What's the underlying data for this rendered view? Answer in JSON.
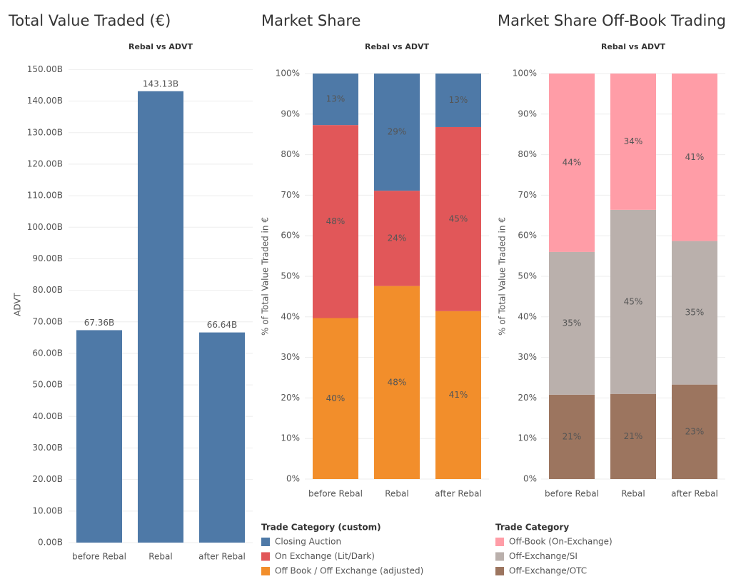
{
  "chart_data": [
    {
      "type": "bar",
      "title": "Total Value Traded (€)",
      "subtitle": "Rebal vs ADVT",
      "y_label": "ADVT",
      "categories": [
        "before Rebal",
        "Rebal",
        "after Rebal"
      ],
      "values": [
        67.36,
        143.13,
        66.64
      ],
      "value_labels": [
        "67.36B",
        "143.13B",
        "66.64B"
      ],
      "color": "#4e79a7",
      "ylim": [
        0,
        151
      ],
      "yticks": [
        {
          "value": 0,
          "label": "0.00B"
        },
        {
          "value": 10,
          "label": "10.00B"
        },
        {
          "value": 20,
          "label": "20.00B"
        },
        {
          "value": 30,
          "label": "30.00B"
        },
        {
          "value": 40,
          "label": "40.00B"
        },
        {
          "value": 50,
          "label": "50.00B"
        },
        {
          "value": 60,
          "label": "60.00B"
        },
        {
          "value": 70,
          "label": "70.00B"
        },
        {
          "value": 80,
          "label": "80.00B"
        },
        {
          "value": 90,
          "label": "90.00B"
        },
        {
          "value": 100,
          "label": "100.00B"
        },
        {
          "value": 110,
          "label": "110.00B"
        },
        {
          "value": 120,
          "label": "120.00B"
        },
        {
          "value": 130,
          "label": "130.00B"
        },
        {
          "value": 140,
          "label": "140.00B"
        },
        {
          "value": 150,
          "label": "150.00B"
        }
      ],
      "grid": true
    },
    {
      "type": "stacked_bar",
      "title": "Market Share",
      "subtitle": "Rebal vs ADVT",
      "y_label": "% of Total Value Traded in €",
      "categories": [
        "before Rebal",
        "Rebal",
        "after Rebal"
      ],
      "legend_title": "Trade Category (custom)",
      "series": [
        {
          "name": "Off Book / Off Exchange (adjusted)",
          "color": "#f28e2b",
          "values": [
            39.7,
            47.6,
            41.4
          ],
          "value_labels": [
            "40%",
            "48%",
            "41%"
          ]
        },
        {
          "name": "On Exchange (Lit/Dark)",
          "color": "#e15759",
          "values": [
            47.6,
            23.5,
            45.4
          ],
          "value_labels": [
            "48%",
            "24%",
            "45%"
          ]
        },
        {
          "name": "Closing Auction",
          "color": "#4e79a7",
          "values": [
            12.7,
            28.9,
            13.2
          ],
          "value_labels": [
            "13%",
            "29%",
            "13%"
          ]
        }
      ],
      "ylim": [
        0,
        100
      ],
      "yticks": [
        {
          "value": 0,
          "label": "0%"
        },
        {
          "value": 10,
          "label": "10%"
        },
        {
          "value": 20,
          "label": "20%"
        },
        {
          "value": 30,
          "label": "30%"
        },
        {
          "value": 40,
          "label": "40%"
        },
        {
          "value": 50,
          "label": "50%"
        },
        {
          "value": 60,
          "label": "60%"
        },
        {
          "value": 70,
          "label": "70%"
        },
        {
          "value": 80,
          "label": "80%"
        },
        {
          "value": 90,
          "label": "90%"
        },
        {
          "value": 100,
          "label": "100%"
        }
      ],
      "grid": true
    },
    {
      "type": "stacked_bar",
      "title": "Market Share Off-Book Trading",
      "subtitle": "Rebal vs ADVT",
      "y_label": "% of Total Value Traded in €",
      "categories": [
        "before Rebal",
        "Rebal",
        "after Rebal"
      ],
      "legend_title": "Trade Category",
      "series": [
        {
          "name": "Off-Exchange/OTC",
          "color": "#9c755f",
          "values": [
            20.8,
            21.0,
            23.3
          ],
          "value_labels": [
            "21%",
            "21%",
            "23%"
          ]
        },
        {
          "name": "Off-Exchange/SI",
          "color": "#bab0ac",
          "values": [
            35.2,
            45.4,
            35.4
          ],
          "value_labels": [
            "35%",
            "45%",
            "35%"
          ]
        },
        {
          "name": "Off-Book (On-Exchange)",
          "color": "#ff9da7",
          "values": [
            44.0,
            33.6,
            41.3
          ],
          "value_labels": [
            "44%",
            "34%",
            "41%"
          ]
        }
      ],
      "ylim": [
        0,
        100
      ],
      "yticks": [
        {
          "value": 0,
          "label": "0%"
        },
        {
          "value": 10,
          "label": "10%"
        },
        {
          "value": 20,
          "label": "20%"
        },
        {
          "value": 30,
          "label": "30%"
        },
        {
          "value": 40,
          "label": "40%"
        },
        {
          "value": 50,
          "label": "50%"
        },
        {
          "value": 60,
          "label": "60%"
        },
        {
          "value": 70,
          "label": "70%"
        },
        {
          "value": 80,
          "label": "80%"
        },
        {
          "value": 90,
          "label": "90%"
        },
        {
          "value": 100,
          "label": "100%"
        }
      ],
      "grid": true
    }
  ]
}
